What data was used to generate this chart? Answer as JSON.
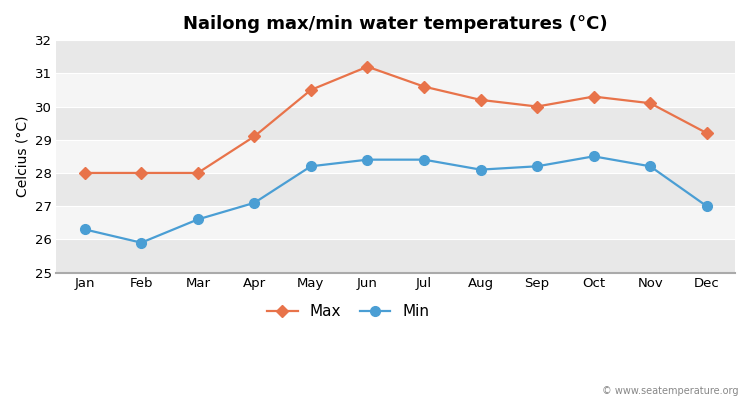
{
  "title": "Nailong max/min water temperatures (°C)",
  "ylabel": "Celcius (°C)",
  "months": [
    "Jan",
    "Feb",
    "Mar",
    "Apr",
    "May",
    "Jun",
    "Jul",
    "Aug",
    "Sep",
    "Oct",
    "Nov",
    "Dec"
  ],
  "max_temps": [
    28.0,
    28.0,
    28.0,
    29.1,
    30.5,
    31.2,
    30.6,
    30.2,
    30.0,
    30.3,
    30.1,
    29.2
  ],
  "min_temps": [
    26.3,
    25.9,
    26.6,
    27.1,
    28.2,
    28.4,
    28.4,
    28.1,
    28.2,
    28.5,
    28.2,
    27.0
  ],
  "max_color": "#e8734a",
  "min_color": "#4a9ed4",
  "fig_bg_color": "#ffffff",
  "plot_bg_color": "#ffffff",
  "band_colors": [
    "#e8e8e8",
    "#f5f5f5"
  ],
  "ylim": [
    25,
    32
  ],
  "yticks": [
    25,
    26,
    27,
    28,
    29,
    30,
    31,
    32
  ],
  "watermark": "© www.seatemperature.org",
  "title_fontsize": 13,
  "label_fontsize": 10,
  "tick_fontsize": 9.5,
  "legend_fontsize": 11
}
